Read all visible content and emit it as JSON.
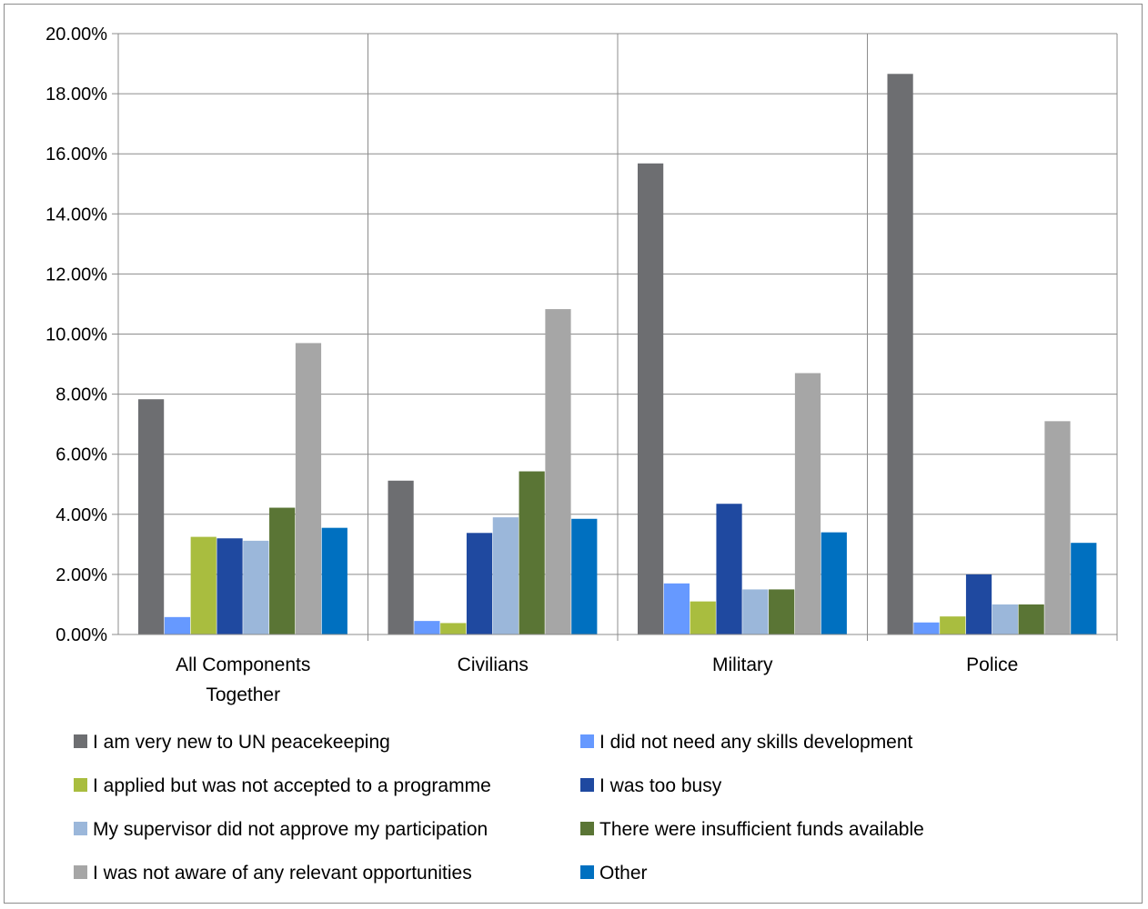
{
  "chart_data": {
    "type": "bar",
    "title": "",
    "xlabel": "",
    "ylabel": "",
    "ylim": [
      0,
      0.2
    ],
    "ytick_format": "percent_2dp",
    "grid": true,
    "legend_position": "bottom",
    "categories": [
      [
        "All Components",
        "Together"
      ],
      [
        "Civilians"
      ],
      [
        "Military"
      ],
      [
        "Police"
      ]
    ],
    "series": [
      {
        "name": "I am very new to UN peacekeeping",
        "color": "#6d6e71",
        "values": [
          0.0783,
          0.0512,
          0.1568,
          0.1866
        ]
      },
      {
        "name": "I did not need any skills development",
        "color": "#6699ff",
        "values": [
          0.0058,
          0.0045,
          0.017,
          0.004
        ]
      },
      {
        "name": "I applied but was not accepted to a programme",
        "color": "#a9bd3f",
        "values": [
          0.0325,
          0.0038,
          0.011,
          0.006
        ]
      },
      {
        "name": "I was too busy",
        "color": "#1f49a0",
        "values": [
          0.032,
          0.0338,
          0.0435,
          0.02
        ]
      },
      {
        "name": "My supervisor did not approve my participation",
        "color": "#9bb7da",
        "values": [
          0.0312,
          0.039,
          0.015,
          0.01
        ]
      },
      {
        "name": "There were insufficient funds available",
        "color": "#5a7535",
        "values": [
          0.0422,
          0.0543,
          0.015,
          0.01
        ]
      },
      {
        "name": "I was not aware of any relevant opportunities",
        "color": "#a6a6a6",
        "values": [
          0.097,
          0.1083,
          0.087,
          0.071
        ]
      },
      {
        "name": "Other",
        "color": "#0070c0",
        "values": [
          0.0355,
          0.0385,
          0.034,
          0.0305
        ]
      }
    ]
  }
}
